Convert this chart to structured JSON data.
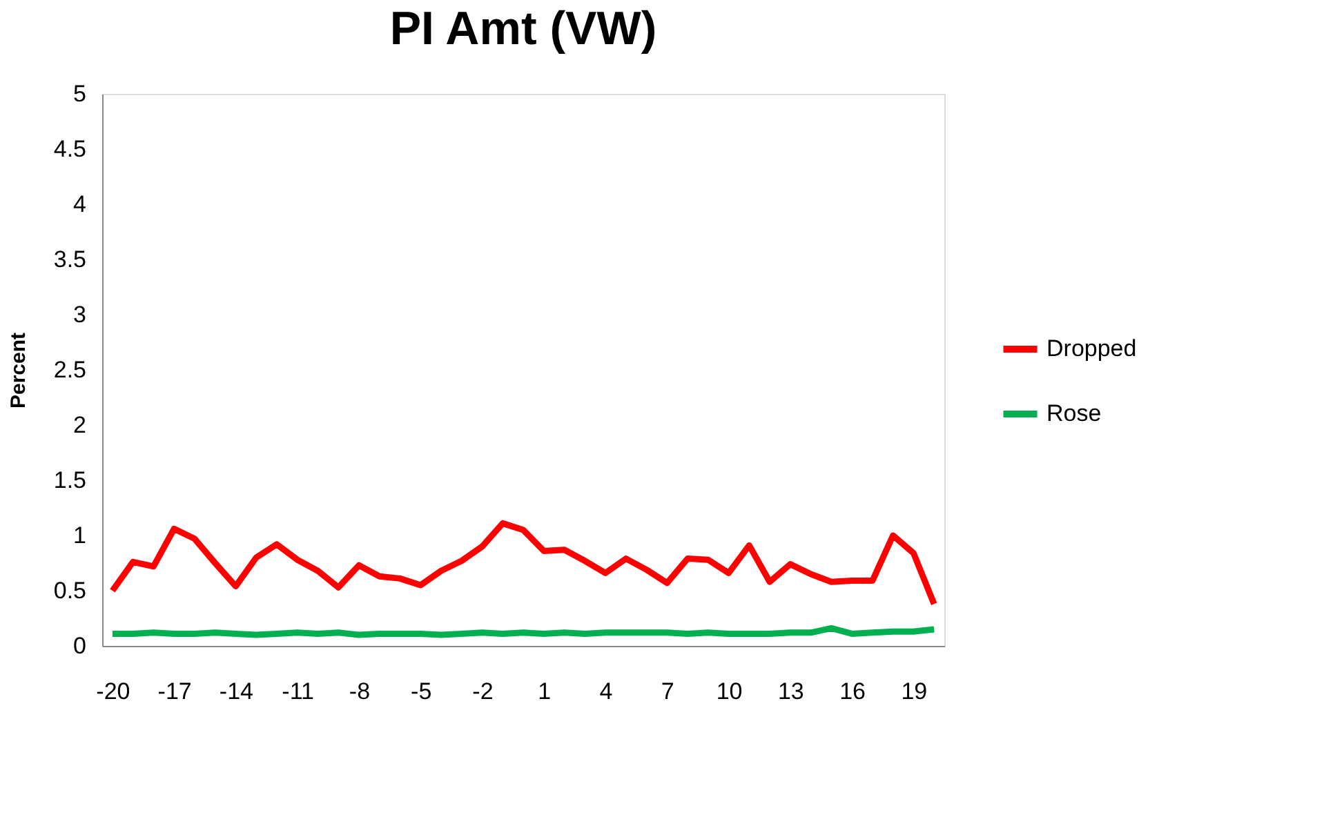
{
  "chart_data": {
    "type": "line",
    "title": "PI Amt (VW)",
    "ylabel": "Percent",
    "x": [
      -20,
      -19,
      -18,
      -17,
      -16,
      -15,
      -14,
      -13,
      -12,
      -11,
      -10,
      -9,
      -8,
      -7,
      -6,
      -5,
      -4,
      -3,
      -2,
      -1,
      0,
      1,
      2,
      3,
      4,
      5,
      6,
      7,
      8,
      9,
      10,
      11,
      12,
      13,
      14,
      15,
      16,
      17,
      18,
      19,
      20
    ],
    "series": [
      {
        "name": "Dropped",
        "color": "#ff0000",
        "values": [
          0.5,
          0.76,
          0.72,
          1.06,
          0.97,
          0.75,
          0.54,
          0.8,
          0.92,
          0.78,
          0.68,
          0.53,
          0.73,
          0.63,
          0.61,
          0.55,
          0.68,
          0.77,
          0.9,
          1.11,
          1.05,
          0.86,
          0.87,
          0.77,
          0.66,
          0.79,
          0.69,
          0.57,
          0.79,
          0.78,
          0.66,
          0.91,
          0.58,
          0.74,
          0.65,
          0.58,
          0.59,
          0.59,
          1.0,
          0.84,
          0.38
        ]
      },
      {
        "name": "Rose",
        "color": "#00b050",
        "values": [
          0.11,
          0.11,
          0.12,
          0.11,
          0.11,
          0.12,
          0.11,
          0.1,
          0.11,
          0.12,
          0.11,
          0.12,
          0.1,
          0.11,
          0.11,
          0.11,
          0.1,
          0.11,
          0.12,
          0.11,
          0.12,
          0.11,
          0.12,
          0.11,
          0.12,
          0.12,
          0.12,
          0.12,
          0.11,
          0.12,
          0.11,
          0.11,
          0.11,
          0.12,
          0.12,
          0.16,
          0.11,
          0.12,
          0.13,
          0.13,
          0.15
        ]
      }
    ],
    "xlim": [
      -20.5,
      20.5
    ],
    "xticks": [
      -20,
      -17,
      -14,
      -11,
      -8,
      -5,
      -2,
      1,
      4,
      7,
      10,
      13,
      16,
      19
    ],
    "ylim": [
      0,
      5
    ],
    "yticks": [
      0,
      0.5,
      1,
      1.5,
      2,
      2.5,
      3,
      3.5,
      4,
      4.5,
      5
    ],
    "grid": false,
    "legend": "right",
    "marker": "none",
    "line_style": "solid"
  }
}
